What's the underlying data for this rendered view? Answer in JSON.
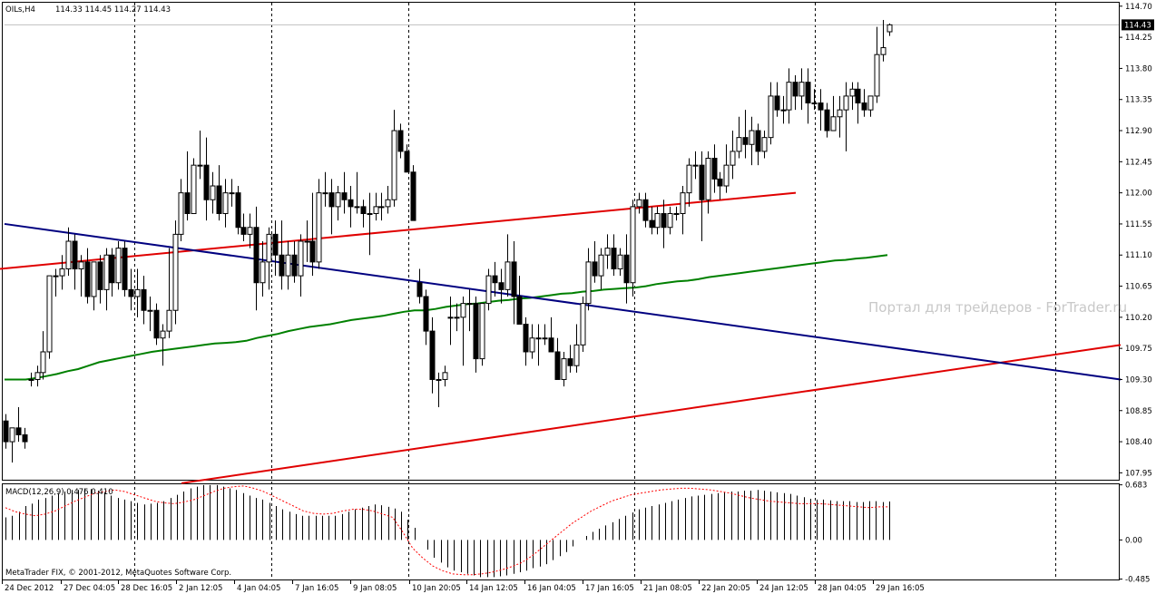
{
  "header": {
    "symbol": "OILs,H4",
    "ohlc": "114.33 114.45 114.27 114.43"
  },
  "watermark": "Портал для трейдеров - ForTrader.ru",
  "copyright": "MetaTrader FIX, © 2001-2012, MetaQuotes Software Corp.",
  "colors": {
    "bull_candle": "#ffffff",
    "bear_candle": "#000000",
    "ma": "#008000",
    "channel": "#e00000",
    "trendline": "#000080",
    "macd_hist": "#000000",
    "macd_signal": "#ff0000"
  },
  "chart_data": [
    {
      "type": "candlestick",
      "title": "OILs,H4",
      "price_axis_ticks": [
        "114.70",
        "114.25",
        "113.80",
        "113.35",
        "112.90",
        "112.45",
        "112.00",
        "111.55",
        "111.10",
        "110.65",
        "110.20",
        "109.75",
        "109.30",
        "108.85",
        "108.40",
        "107.95"
      ],
      "current_price": "114.43",
      "ylim": [
        107.85,
        114.75
      ],
      "date_axis_ticks": [
        "24 Dec 2012",
        "27 Dec 04:05",
        "28 Dec 16:05",
        "2 Jan 12:05",
        "4 Jan 04:05",
        "7 Jan 16:05",
        "9 Jan 08:05",
        "10 Jan 20:05",
        "14 Jan 12:05",
        "16 Jan 04:05",
        "17 Jan 16:05",
        "21 Jan 08:05",
        "22 Jan 20:05",
        "24 Jan 12:05",
        "28 Jan 04:05",
        "29 Jan 16:05"
      ],
      "candles_ohlc": [
        [
          108.7,
          108.8,
          108.3,
          108.4
        ],
        [
          108.4,
          108.6,
          108.1,
          108.6
        ],
        [
          108.6,
          108.9,
          108.4,
          108.5
        ],
        [
          108.5,
          108.6,
          108.3,
          108.4
        ],
        [
          109.3,
          109.4,
          109.2,
          109.3
        ],
        [
          109.3,
          109.5,
          109.2,
          109.4
        ],
        [
          109.4,
          110.0,
          109.3,
          109.7
        ],
        [
          109.7,
          110.8,
          109.6,
          110.8
        ],
        [
          110.8,
          110.9,
          110.5,
          110.8
        ],
        [
          110.8,
          111.1,
          110.6,
          110.9
        ],
        [
          110.9,
          111.5,
          110.8,
          111.3
        ],
        [
          111.3,
          111.4,
          110.6,
          110.9
        ],
        [
          110.9,
          111.1,
          110.5,
          111.0
        ],
        [
          111.0,
          111.2,
          110.4,
          110.5
        ],
        [
          110.5,
          111.0,
          110.3,
          111.0
        ],
        [
          111.0,
          111.1,
          110.4,
          110.6
        ],
        [
          110.6,
          111.2,
          110.3,
          111.1
        ],
        [
          111.1,
          111.2,
          110.5,
          110.7
        ],
        [
          110.7,
          111.3,
          110.6,
          111.2
        ],
        [
          111.2,
          111.3,
          110.5,
          110.6
        ],
        [
          110.6,
          110.9,
          110.3,
          110.5
        ],
        [
          110.5,
          110.9,
          110.2,
          110.6
        ],
        [
          110.6,
          110.8,
          110.1,
          110.3
        ],
        [
          110.3,
          110.5,
          110.0,
          110.3
        ],
        [
          110.3,
          110.4,
          109.8,
          109.9
        ],
        [
          109.9,
          110.1,
          109.5,
          110.0
        ],
        [
          110.0,
          111.2,
          109.9,
          110.3
        ],
        [
          110.3,
          111.6,
          110.1,
          111.4
        ],
        [
          111.4,
          112.2,
          111.3,
          112.0
        ],
        [
          112.0,
          112.6,
          111.6,
          111.7
        ],
        [
          111.7,
          112.5,
          111.7,
          112.4
        ],
        [
          112.4,
          112.9,
          112.2,
          112.4
        ],
        [
          112.4,
          112.8,
          111.6,
          111.9
        ],
        [
          111.9,
          112.3,
          111.7,
          112.1
        ],
        [
          112.1,
          112.4,
          111.6,
          111.7
        ],
        [
          111.7,
          112.2,
          111.5,
          112.0
        ],
        [
          112.0,
          112.2,
          111.8,
          112.0
        ],
        [
          112.0,
          112.1,
          111.4,
          111.5
        ],
        [
          111.5,
          111.7,
          111.3,
          111.4
        ],
        [
          111.4,
          111.7,
          111.2,
          111.5
        ],
        [
          111.5,
          111.8,
          110.3,
          110.7
        ],
        [
          110.7,
          111.3,
          110.5,
          111.0
        ],
        [
          111.0,
          111.5,
          110.6,
          111.4
        ],
        [
          111.4,
          111.6,
          110.8,
          111.1
        ],
        [
          111.1,
          111.6,
          110.6,
          110.8
        ],
        [
          110.8,
          111.3,
          110.6,
          111.1
        ],
        [
          111.1,
          111.3,
          110.7,
          110.8
        ],
        [
          110.8,
          111.4,
          110.5,
          111.3
        ],
        [
          111.3,
          111.6,
          111.0,
          111.3
        ],
        [
          111.3,
          112.0,
          110.8,
          111.0
        ],
        [
          111.0,
          112.2,
          110.9,
          112.0
        ],
        [
          112.0,
          112.3,
          111.8,
          112.0
        ],
        [
          112.0,
          112.2,
          111.4,
          111.8
        ],
        [
          111.8,
          112.1,
          111.6,
          112.0
        ],
        [
          112.0,
          112.3,
          111.7,
          111.9
        ],
        [
          111.9,
          112.1,
          111.5,
          111.8
        ],
        [
          111.8,
          112.3,
          111.7,
          111.8
        ],
        [
          111.8,
          111.9,
          111.5,
          111.7
        ],
        [
          111.7,
          112.0,
          111.1,
          111.7
        ],
        [
          111.7,
          112.0,
          111.6,
          111.8
        ],
        [
          111.8,
          112.0,
          111.6,
          111.8
        ],
        [
          111.8,
          112.1,
          111.7,
          111.9
        ],
        [
          111.9,
          113.2,
          111.8,
          112.9
        ],
        [
          112.9,
          113.0,
          112.5,
          112.6
        ],
        [
          112.6,
          112.7,
          112.3,
          112.3
        ],
        [
          112.3,
          112.4,
          111.6,
          111.6
        ],
        [
          110.7,
          110.9,
          110.4,
          110.5
        ],
        [
          110.5,
          110.6,
          109.8,
          110.0
        ],
        [
          110.0,
          110.2,
          109.1,
          109.3
        ],
        [
          109.3,
          109.4,
          108.9,
          109.3
        ],
        [
          109.3,
          109.5,
          109.2,
          109.4
        ],
        [
          110.2,
          110.5,
          109.8,
          110.2
        ],
        [
          110.2,
          110.4,
          110.0,
          110.2
        ],
        [
          110.2,
          110.5,
          109.5,
          110.4
        ],
        [
          110.4,
          110.6,
          110.0,
          110.4
        ],
        [
          110.4,
          110.5,
          109.4,
          109.6
        ],
        [
          109.6,
          110.4,
          109.5,
          110.4
        ],
        [
          110.4,
          110.9,
          110.3,
          110.8
        ],
        [
          110.8,
          111.0,
          110.5,
          110.7
        ],
        [
          110.7,
          110.9,
          110.4,
          110.6
        ],
        [
          110.6,
          111.4,
          110.5,
          111.0
        ],
        [
          111.0,
          111.3,
          110.1,
          110.5
        ],
        [
          110.5,
          110.8,
          110.1,
          110.1
        ],
        [
          110.1,
          110.2,
          109.5,
          109.7
        ],
        [
          109.7,
          110.1,
          109.6,
          109.9
        ],
        [
          109.9,
          110.1,
          109.5,
          109.9
        ],
        [
          109.9,
          110.1,
          109.8,
          109.9
        ],
        [
          109.9,
          110.2,
          109.7,
          109.7
        ],
        [
          109.7,
          109.9,
          109.3,
          109.3
        ],
        [
          109.3,
          109.7,
          109.2,
          109.6
        ],
        [
          109.6,
          109.8,
          109.4,
          109.5
        ],
        [
          109.5,
          110.1,
          109.4,
          109.8
        ],
        [
          109.8,
          110.5,
          109.7,
          110.4
        ],
        [
          110.4,
          111.2,
          110.3,
          111.0
        ],
        [
          111.0,
          111.3,
          110.7,
          110.8
        ],
        [
          110.8,
          111.2,
          110.6,
          111.1
        ],
        [
          111.1,
          111.4,
          110.9,
          111.2
        ],
        [
          111.2,
          111.4,
          110.8,
          110.9
        ],
        [
          110.9,
          111.2,
          110.8,
          111.1
        ],
        [
          111.1,
          111.4,
          110.4,
          110.7
        ],
        [
          110.7,
          111.9,
          110.5,
          111.8
        ],
        [
          111.8,
          112.0,
          111.7,
          111.9
        ],
        [
          111.9,
          112.0,
          111.5,
          111.6
        ],
        [
          111.6,
          111.8,
          111.4,
          111.5
        ],
        [
          111.5,
          111.8,
          111.4,
          111.7
        ],
        [
          111.7,
          111.9,
          111.2,
          111.5
        ],
        [
          111.5,
          111.8,
          111.4,
          111.7
        ],
        [
          111.7,
          111.8,
          111.6,
          111.7
        ],
        [
          111.7,
          112.1,
          111.4,
          112.0
        ],
        [
          112.0,
          112.5,
          111.8,
          112.4
        ],
        [
          112.4,
          112.6,
          112.2,
          112.4
        ],
        [
          112.4,
          112.6,
          111.3,
          111.9
        ],
        [
          111.9,
          112.6,
          111.7,
          112.5
        ],
        [
          112.5,
          112.7,
          112.0,
          112.2
        ],
        [
          112.2,
          112.3,
          111.9,
          112.1
        ],
        [
          112.1,
          112.7,
          112.0,
          112.4
        ],
        [
          112.4,
          112.9,
          112.2,
          112.6
        ],
        [
          112.6,
          113.1,
          112.5,
          112.8
        ],
        [
          112.8,
          113.2,
          112.5,
          112.7
        ],
        [
          112.7,
          113.1,
          112.4,
          112.9
        ],
        [
          112.9,
          113.0,
          112.4,
          112.6
        ],
        [
          112.6,
          112.9,
          112.5,
          112.8
        ],
        [
          112.8,
          113.6,
          112.7,
          113.4
        ],
        [
          113.4,
          113.6,
          113.1,
          113.2
        ],
        [
          113.2,
          113.4,
          113.0,
          113.2
        ],
        [
          113.2,
          113.8,
          113.0,
          113.6
        ],
        [
          113.6,
          113.7,
          113.2,
          113.4
        ],
        [
          113.4,
          113.8,
          113.2,
          113.6
        ],
        [
          113.6,
          113.8,
          113.0,
          113.3
        ],
        [
          113.3,
          113.5,
          113.2,
          113.3
        ],
        [
          113.3,
          113.5,
          112.9,
          113.2
        ],
        [
          113.2,
          113.3,
          112.8,
          112.9
        ],
        [
          112.9,
          113.4,
          112.9,
          113.1
        ],
        [
          113.1,
          113.4,
          112.8,
          113.2
        ],
        [
          113.2,
          113.6,
          112.6,
          113.4
        ],
        [
          113.4,
          113.6,
          113.2,
          113.5
        ],
        [
          113.5,
          113.6,
          113.0,
          113.3
        ],
        [
          113.3,
          113.5,
          113.1,
          113.2
        ],
        [
          113.2,
          113.4,
          113.1,
          113.4
        ],
        [
          113.4,
          114.4,
          113.3,
          114.0
        ],
        [
          114.0,
          114.5,
          113.9,
          114.1
        ],
        [
          114.33,
          114.45,
          114.27,
          114.43
        ]
      ],
      "moving_average": [
        109.3,
        109.3,
        109.3,
        109.32,
        109.35,
        109.38,
        109.42,
        109.45,
        109.5,
        109.55,
        109.58,
        109.61,
        109.64,
        109.67,
        109.7,
        109.72,
        109.74,
        109.76,
        109.78,
        109.8,
        109.82,
        109.83,
        109.84,
        109.86,
        109.9,
        109.93,
        109.96,
        110.0,
        110.03,
        110.06,
        110.08,
        110.1,
        110.13,
        110.16,
        110.18,
        110.2,
        110.22,
        110.25,
        110.28,
        110.3,
        110.3,
        110.32,
        110.35,
        110.37,
        110.39,
        110.4,
        110.42,
        110.44,
        110.45,
        110.47,
        110.48,
        110.5,
        110.52,
        110.54,
        110.55,
        110.57,
        110.58,
        110.6,
        110.61,
        110.62,
        110.63,
        110.65,
        110.68,
        110.7,
        110.72,
        110.73,
        110.75,
        110.78,
        110.8,
        110.82,
        110.84,
        110.86,
        110.88,
        110.9,
        110.92,
        110.94,
        110.96,
        110.98,
        111.0,
        111.02,
        111.03,
        111.05,
        111.06,
        111.08,
        111.1
      ],
      "upper_channel": [
        [
          0,
          110.9
        ],
        [
          877,
          112.0
        ]
      ],
      "lower_channel": [
        [
          200,
          107.8
        ],
        [
          1235,
          109.8
        ]
      ],
      "trendline": [
        [
          5,
          111.55
        ],
        [
          1235,
          109.3
        ]
      ]
    },
    {
      "type": "bar",
      "title": "MACD(12,26,9) 0.476 0.410",
      "value_axis_ticks": [
        "0.683",
        "0.00",
        "-0.485"
      ],
      "ylim": [
        -0.49,
        0.69
      ],
      "histogram": [
        0.28,
        0.3,
        0.35,
        0.42,
        0.45,
        0.5,
        0.52,
        0.55,
        0.58,
        0.6,
        0.62,
        0.62,
        0.64,
        0.63,
        0.61,
        0.59,
        0.55,
        0.52,
        0.5,
        0.48,
        0.46,
        0.44,
        0.45,
        0.46,
        0.48,
        0.52,
        0.56,
        0.6,
        0.64,
        0.66,
        0.68,
        0.68,
        0.68,
        0.66,
        0.64,
        0.62,
        0.58,
        0.55,
        0.52,
        0.5,
        0.46,
        0.42,
        0.38,
        0.35,
        0.32,
        0.3,
        0.3,
        0.3,
        0.3,
        0.3,
        0.3,
        0.32,
        0.35,
        0.38,
        0.4,
        0.42,
        0.44,
        0.43,
        0.41,
        0.39,
        0.35,
        0.25,
        0.15,
        0.0,
        -0.12,
        -0.22,
        -0.28,
        -0.34,
        -0.38,
        -0.4,
        -0.42,
        -0.44,
        -0.46,
        -0.46,
        -0.46,
        -0.45,
        -0.44,
        -0.42,
        -0.4,
        -0.38,
        -0.35,
        -0.33,
        -0.3,
        -0.25,
        -0.2,
        -0.15,
        -0.08,
        0.0,
        0.05,
        0.1,
        0.14,
        0.18,
        0.22,
        0.26,
        0.3,
        0.34,
        0.38,
        0.4,
        0.42,
        0.44,
        0.46,
        0.48,
        0.5,
        0.52,
        0.54,
        0.55,
        0.56,
        0.57,
        0.58,
        0.59,
        0.6,
        0.6,
        0.61,
        0.61,
        0.62,
        0.61,
        0.6,
        0.59,
        0.58,
        0.57,
        0.55,
        0.53,
        0.51,
        0.5,
        0.5,
        0.49,
        0.48,
        0.48,
        0.48,
        0.47,
        0.47,
        0.48,
        0.48,
        0.47,
        0.476
      ],
      "signal": [
        0.4,
        0.35,
        0.32,
        0.3,
        0.32,
        0.36,
        0.42,
        0.48,
        0.53,
        0.58,
        0.6,
        0.62,
        0.6,
        0.56,
        0.52,
        0.48,
        0.46,
        0.45,
        0.47,
        0.5,
        0.55,
        0.6,
        0.64,
        0.66,
        0.67,
        0.64,
        0.6,
        0.54,
        0.48,
        0.42,
        0.36,
        0.33,
        0.32,
        0.33,
        0.36,
        0.38,
        0.38,
        0.36,
        0.32,
        0.28,
        0.1,
        -0.1,
        -0.22,
        -0.32,
        -0.38,
        -0.42,
        -0.43,
        -0.43,
        -0.42,
        -0.4,
        -0.37,
        -0.33,
        -0.28,
        -0.2,
        -0.1,
        0.0,
        0.1,
        0.2,
        0.28,
        0.36,
        0.42,
        0.48,
        0.52,
        0.56,
        0.58,
        0.6,
        0.62,
        0.63,
        0.64,
        0.64,
        0.63,
        0.62,
        0.6,
        0.58,
        0.55,
        0.52,
        0.5,
        0.48,
        0.47,
        0.46,
        0.45,
        0.45,
        0.45,
        0.44,
        0.43,
        0.42,
        0.41,
        0.4,
        0.41,
        0.41
      ]
    }
  ]
}
